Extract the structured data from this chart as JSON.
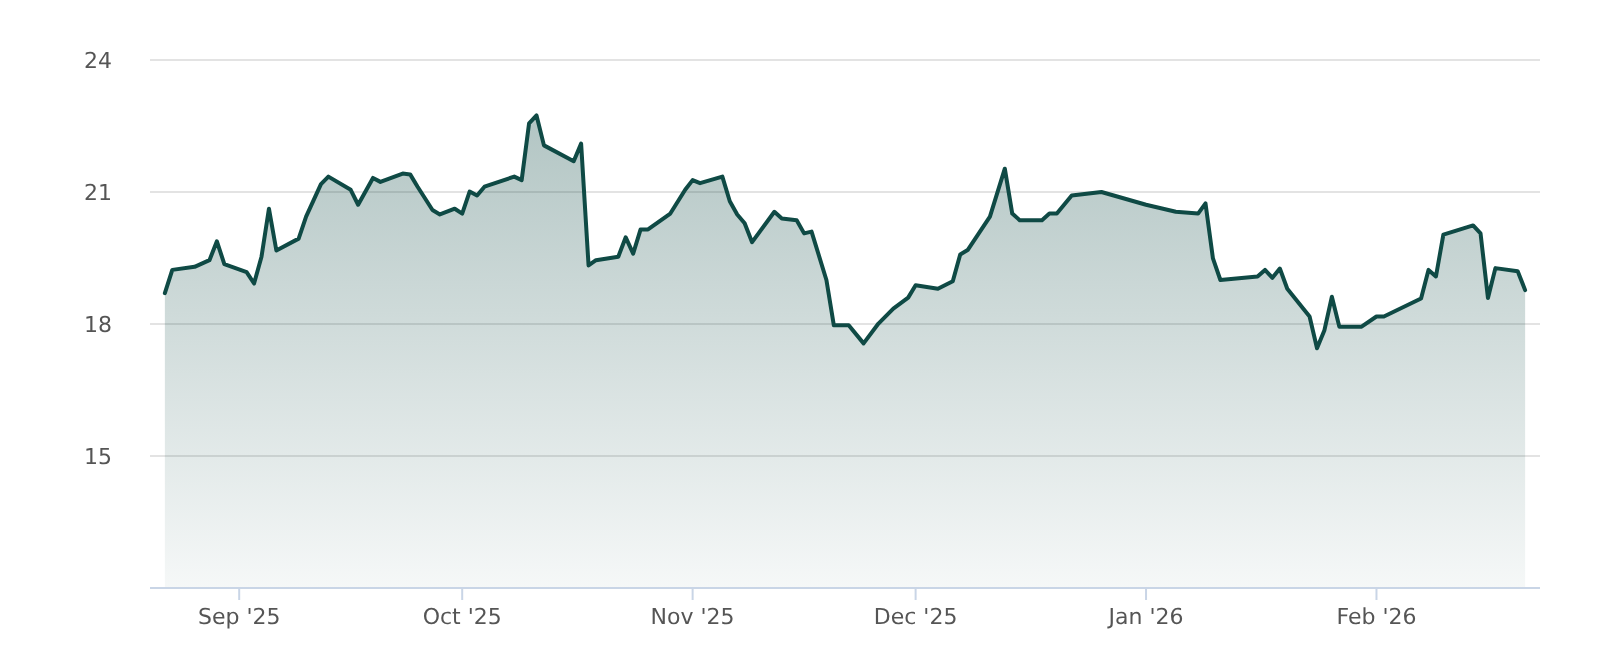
{
  "chart_data": {
    "type": "area",
    "xlim": [
      "2025-08-20",
      "2026-02-23"
    ],
    "ylim": [
      12,
      24
    ],
    "yticks": [
      15,
      18,
      21,
      24
    ],
    "xticks": [
      {
        "value": "2025-09-01",
        "label": "Sep '25"
      },
      {
        "value": "2025-10-01",
        "label": "Oct '25"
      },
      {
        "value": "2025-11-01",
        "label": "Nov '25"
      },
      {
        "value": "2025-12-01",
        "label": "Dec '25"
      },
      {
        "value": "2026-01-01",
        "label": "Jan '26"
      },
      {
        "value": "2026-02-01",
        "label": "Feb '26"
      }
    ],
    "grid": "y",
    "marker": "none",
    "line_style": "solid",
    "x": [
      "2025-08-22",
      "2025-08-23",
      "2025-08-26",
      "2025-08-28",
      "2025-08-29",
      "2025-08-30",
      "2025-09-02",
      "2025-09-03",
      "2025-09-04",
      "2025-09-05",
      "2025-09-06",
      "2025-09-09",
      "2025-09-10",
      "2025-09-12",
      "2025-09-13",
      "2025-09-16",
      "2025-09-17",
      "2025-09-19",
      "2025-09-20",
      "2025-09-23",
      "2025-09-24",
      "2025-09-25",
      "2025-09-27",
      "2025-09-28",
      "2025-09-30",
      "2025-10-01",
      "2025-10-02",
      "2025-10-03",
      "2025-10-04",
      "2025-10-08",
      "2025-10-09",
      "2025-10-10",
      "2025-10-11",
      "2025-10-12",
      "2025-10-16",
      "2025-10-17",
      "2025-10-18",
      "2025-10-19",
      "2025-10-22",
      "2025-10-23",
      "2025-10-24",
      "2025-10-25",
      "2025-10-26",
      "2025-10-29",
      "2025-10-31",
      "2025-11-01",
      "2025-11-02",
      "2025-11-05",
      "2025-11-06",
      "2025-11-07",
      "2025-11-08",
      "2025-11-09",
      "2025-11-12",
      "2025-11-13",
      "2025-11-15",
      "2025-11-16",
      "2025-11-17",
      "2025-11-19",
      "2025-11-20",
      "2025-11-22",
      "2025-11-24",
      "2025-11-26",
      "2025-11-28",
      "2025-11-30",
      "2025-12-01",
      "2025-12-04",
      "2025-12-06",
      "2025-12-07",
      "2025-12-08",
      "2025-12-11",
      "2025-12-13",
      "2025-12-14",
      "2025-12-15",
      "2025-12-18",
      "2025-12-19",
      "2025-12-20",
      "2025-12-22",
      "2025-12-26",
      "2026-01-01",
      "2026-01-05",
      "2026-01-08",
      "2026-01-09",
      "2026-01-10",
      "2026-01-11",
      "2026-01-16",
      "2026-01-17",
      "2026-01-18",
      "2026-01-19",
      "2026-01-20",
      "2026-01-23",
      "2026-01-24",
      "2026-01-25",
      "2026-01-26",
      "2026-01-27",
      "2026-01-30",
      "2026-02-01",
      "2026-02-02",
      "2026-02-07",
      "2026-02-08",
      "2026-02-09",
      "2026-02-10",
      "2026-02-14",
      "2026-02-15",
      "2026-02-16",
      "2026-02-17",
      "2026-02-20",
      "2026-02-21"
    ],
    "series": [
      {
        "color": "#0f4a45",
        "values": [
          18.7,
          19.23,
          19.3,
          19.45,
          19.88,
          19.36,
          19.18,
          18.92,
          19.53,
          20.62,
          19.67,
          19.94,
          20.44,
          21.18,
          21.35,
          21.05,
          20.71,
          21.32,
          21.23,
          21.42,
          21.4,
          21.12,
          20.59,
          20.49,
          20.62,
          20.51,
          21.01,
          20.92,
          21.12,
          21.35,
          21.27,
          22.56,
          22.74,
          22.06,
          21.7,
          22.1,
          19.33,
          19.45,
          19.53,
          19.97,
          19.6,
          20.15,
          20.15,
          20.51,
          21.05,
          21.27,
          21.2,
          21.35,
          20.79,
          20.49,
          20.29,
          19.86,
          20.55,
          20.4,
          20.36,
          20.06,
          20.1,
          19.0,
          17.97,
          17.97,
          17.56,
          18.01,
          18.35,
          18.6,
          18.88,
          18.8,
          18.97,
          19.58,
          19.68,
          20.44,
          21.53,
          20.51,
          20.36,
          20.36,
          20.51,
          20.51,
          20.92,
          21.0,
          20.71,
          20.55,
          20.51,
          20.74,
          19.49,
          19.0,
          19.08,
          19.23,
          19.05,
          19.26,
          18.8,
          18.17,
          17.45,
          17.86,
          18.62,
          17.94,
          17.94,
          18.17,
          18.17,
          18.58,
          19.23,
          19.08,
          20.03,
          20.24,
          20.06,
          18.59,
          19.27,
          19.2,
          18.77
        ]
      }
    ]
  }
}
